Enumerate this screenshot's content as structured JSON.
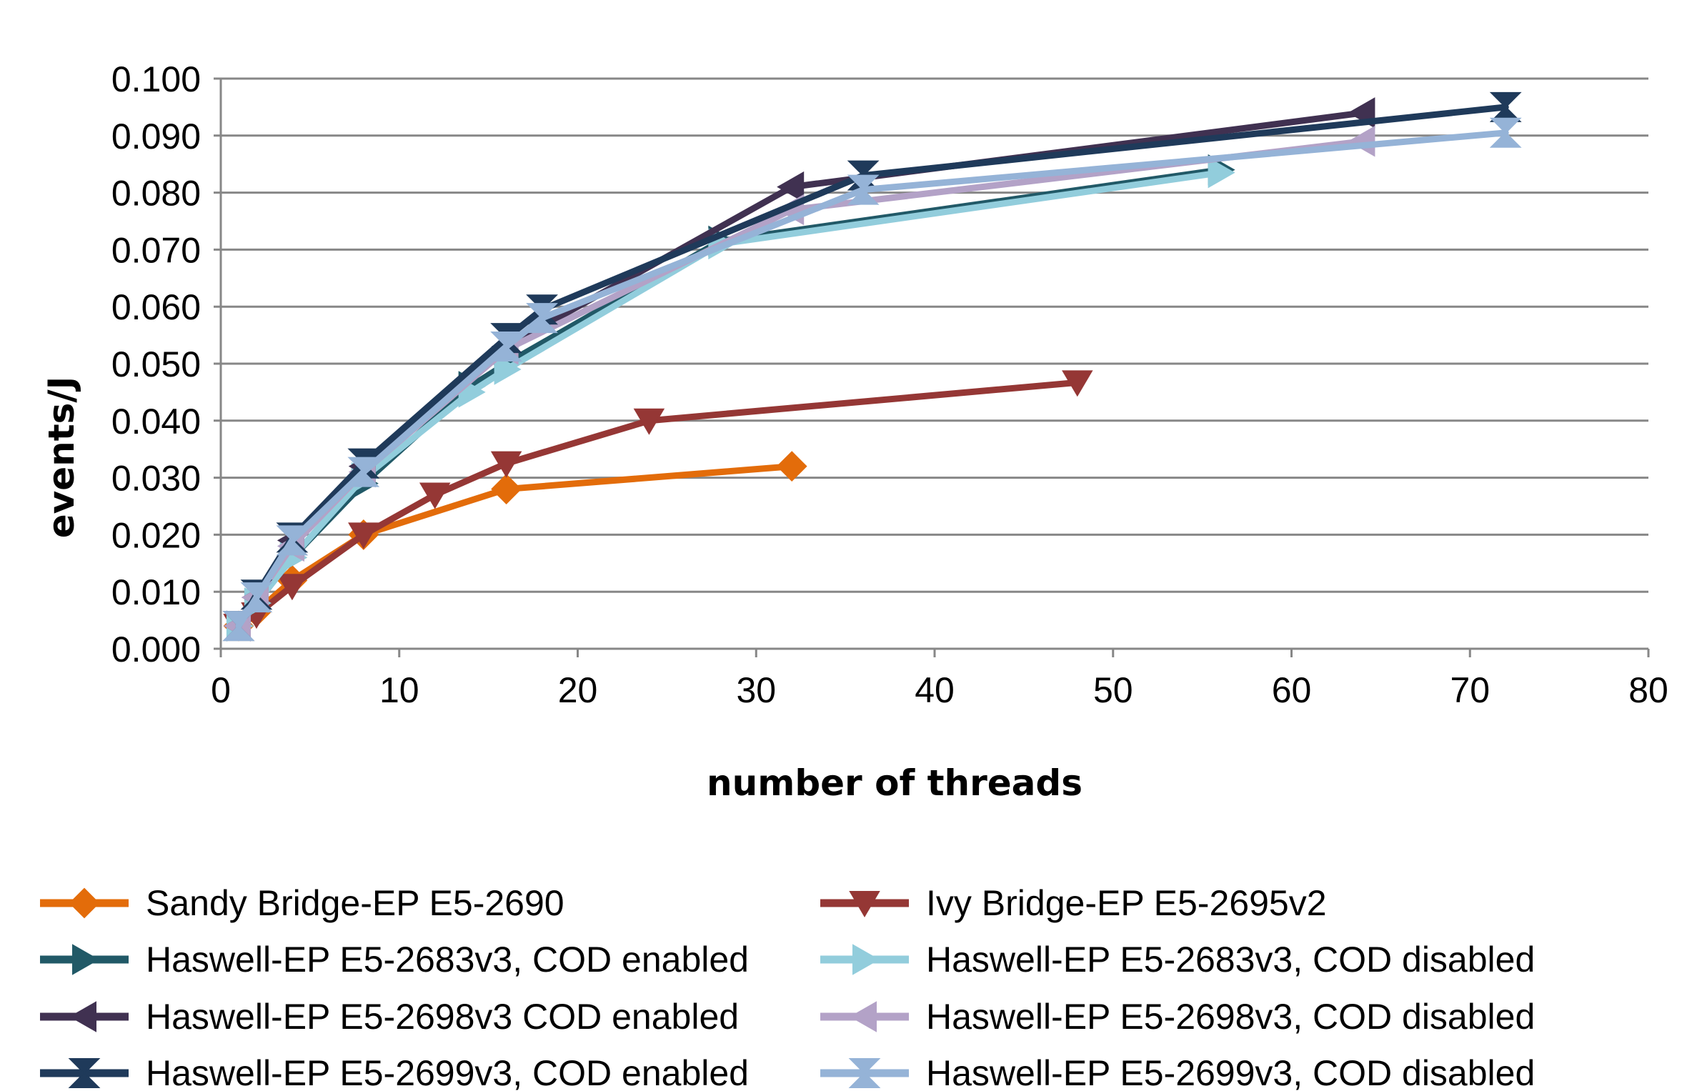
{
  "chart_data": {
    "type": "line",
    "title": "",
    "xlabel": "number of threads",
    "ylabel": "events/J",
    "xlim": [
      0,
      80
    ],
    "ylim": [
      0,
      0.1
    ],
    "x_ticks": [
      "0",
      "10",
      "20",
      "30",
      "40",
      "50",
      "60",
      "70",
      "80"
    ],
    "y_ticks": [
      "0.000",
      "0.010",
      "0.020",
      "0.030",
      "0.040",
      "0.050",
      "0.060",
      "0.070",
      "0.080",
      "0.090",
      "0.100"
    ],
    "grid": "horizontal",
    "legend_position": "bottom",
    "series": [
      {
        "name": "Sandy Bridge-EP E5-2690",
        "color": "#e36c0a",
        "marker": "diamond",
        "points": [
          [
            1,
            0.004
          ],
          [
            2,
            0.0065
          ],
          [
            4,
            0.012
          ],
          [
            8,
            0.02
          ],
          [
            16,
            0.028
          ],
          [
            32,
            0.032
          ]
        ]
      },
      {
        "name": "Ivy Bridge-EP E5-2695v2",
        "color": "#953735",
        "marker": "triangle-down",
        "points": [
          [
            1,
            0.004
          ],
          [
            2,
            0.006
          ],
          [
            4,
            0.011
          ],
          [
            8,
            0.02
          ],
          [
            12,
            0.027
          ],
          [
            16,
            0.0325
          ],
          [
            24,
            0.04
          ],
          [
            48,
            0.0467
          ]
        ]
      },
      {
        "name": "Haswell-EP E5-2683v3, COD enabled",
        "color": "#215967",
        "marker": "triangle-right",
        "points": [
          [
            1,
            0.004
          ],
          [
            2,
            0.008
          ],
          [
            4,
            0.016
          ],
          [
            8,
            0.029
          ],
          [
            14,
            0.046
          ],
          [
            16,
            0.05
          ],
          [
            28,
            0.0715
          ],
          [
            56,
            0.084
          ]
        ]
      },
      {
        "name": "Haswell-EP E5-2683v3, COD disabled",
        "color": "#92cddc",
        "marker": "triangle-right",
        "points": [
          [
            1,
            0.004
          ],
          [
            2,
            0.008
          ],
          [
            4,
            0.016
          ],
          [
            8,
            0.03
          ],
          [
            14,
            0.045
          ],
          [
            16,
            0.049
          ],
          [
            28,
            0.071
          ],
          [
            56,
            0.0835
          ]
        ]
      },
      {
        "name": "Haswell-EP E5-2698v3 COD enabled",
        "color": "#403151",
        "marker": "triangle-left",
        "points": [
          [
            1,
            0.004
          ],
          [
            2,
            0.009
          ],
          [
            4,
            0.019
          ],
          [
            8,
            0.032
          ],
          [
            16,
            0.053
          ],
          [
            32,
            0.081
          ],
          [
            64,
            0.094
          ]
        ]
      },
      {
        "name": "Haswell-EP E5-2698v3, COD disabled",
        "color": "#b3a2c7",
        "marker": "triangle-left",
        "points": [
          [
            1,
            0.004
          ],
          [
            2,
            0.009
          ],
          [
            4,
            0.018
          ],
          [
            8,
            0.031
          ],
          [
            16,
            0.0525
          ],
          [
            32,
            0.077
          ],
          [
            64,
            0.089
          ]
        ]
      },
      {
        "name": "Haswell-EP E5-2699v3, COD enabled",
        "color": "#1f3a5a",
        "marker": "hourglass",
        "points": [
          [
            1,
            0.004
          ],
          [
            2,
            0.0095
          ],
          [
            4,
            0.0195
          ],
          [
            8,
            0.0325
          ],
          [
            16,
            0.0545
          ],
          [
            18,
            0.0595
          ],
          [
            36,
            0.083
          ],
          [
            72,
            0.095
          ]
        ]
      },
      {
        "name": "Haswell-EP E5-2699v3, COD disabled",
        "color": "#95b3d7",
        "marker": "hourglass",
        "points": [
          [
            1,
            0.004
          ],
          [
            2,
            0.009
          ],
          [
            4,
            0.019
          ],
          [
            8,
            0.031
          ],
          [
            16,
            0.053
          ],
          [
            18,
            0.058
          ],
          [
            36,
            0.0805
          ],
          [
            72,
            0.0905
          ]
        ]
      }
    ]
  }
}
